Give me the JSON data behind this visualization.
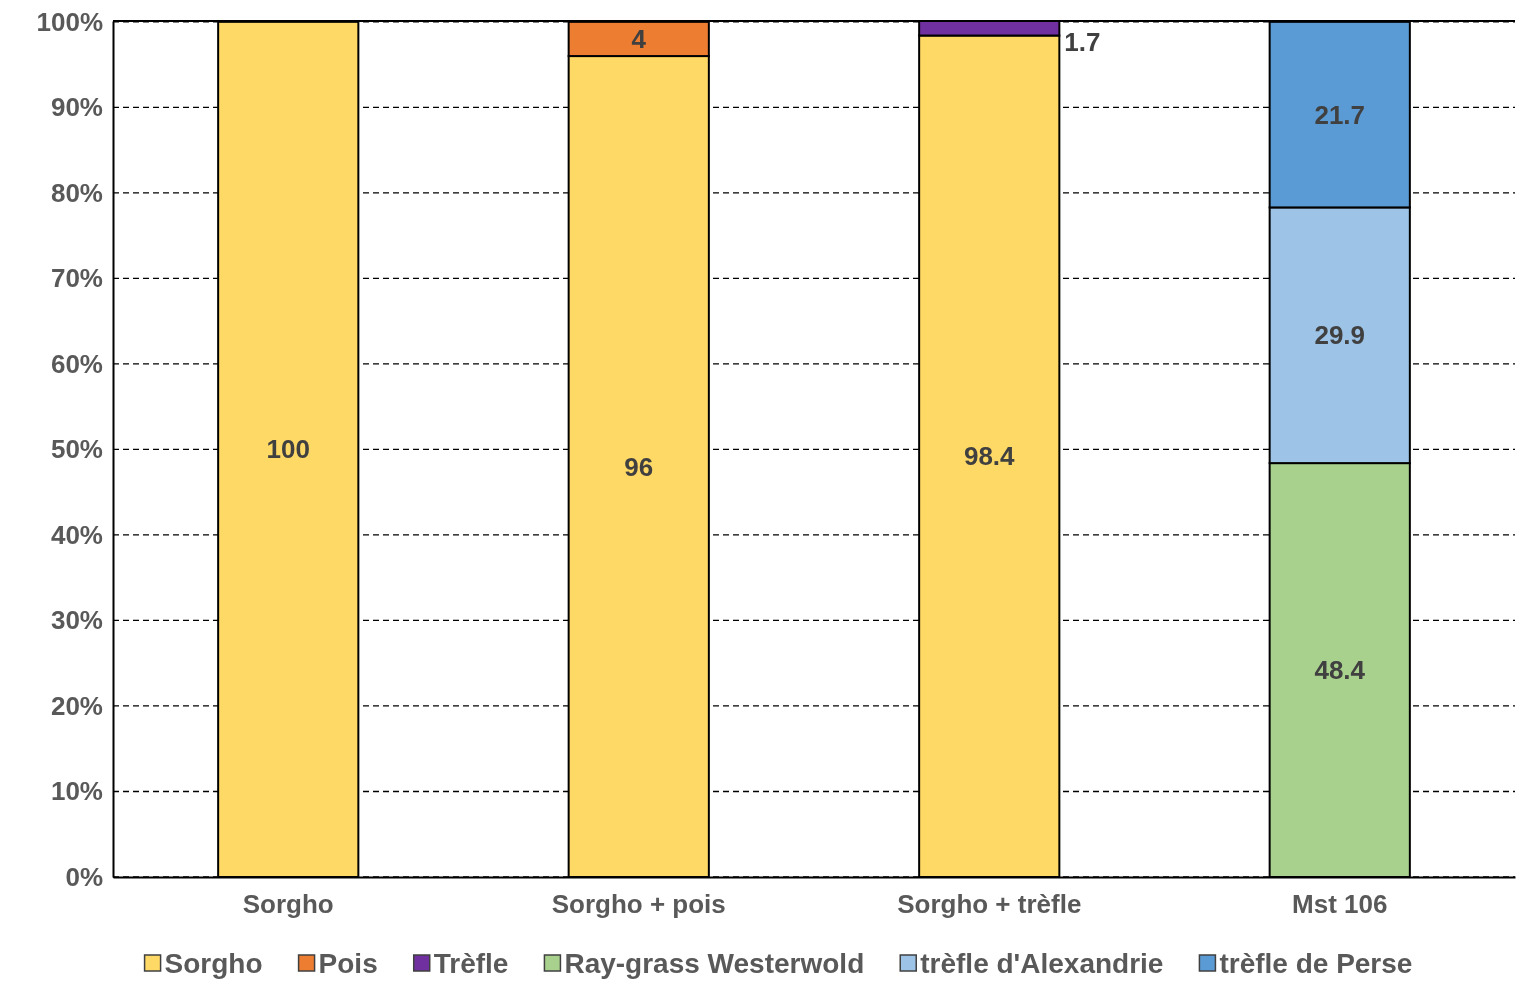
{
  "chart_data": {
    "type": "bar",
    "stacked": true,
    "categories": [
      "Sorgho",
      "Sorgho + pois",
      "Sorgho + trèfle",
      "Mst 106"
    ],
    "series": [
      {
        "name": "Sorgho",
        "color": "#ffd966",
        "values": [
          100,
          96,
          98.4,
          null
        ]
      },
      {
        "name": "Pois",
        "color": "#ed7d31",
        "values": [
          null,
          4,
          null,
          null
        ]
      },
      {
        "name": "Trèfle",
        "color": "#7030a0",
        "values": [
          null,
          null,
          1.7,
          null
        ]
      },
      {
        "name": "Ray-grass Westerwold",
        "color": "#a9d18e",
        "values": [
          null,
          null,
          null,
          48.4
        ]
      },
      {
        "name": "trèfle d'Alexandrie",
        "color": "#9dc3e6",
        "values": [
          null,
          null,
          null,
          29.9
        ]
      },
      {
        "name": "trèfle de Perse",
        "color": "#5b9bd5",
        "values": [
          null,
          null,
          null,
          21.7
        ]
      }
    ],
    "ylim": [
      0,
      100.1
    ],
    "yticks": [
      {
        "value": 0,
        "label": "0%"
      },
      {
        "value": 10,
        "label": "10%"
      },
      {
        "value": 20,
        "label": "20%"
      },
      {
        "value": 30,
        "label": "30%"
      },
      {
        "value": 40,
        "label": "40%"
      },
      {
        "value": 50,
        "label": "50%"
      },
      {
        "value": 60,
        "label": "60%"
      },
      {
        "value": 70,
        "label": "70%"
      },
      {
        "value": 80,
        "label": "80%"
      },
      {
        "value": 90,
        "label": "90%"
      },
      {
        "value": 100,
        "label": "100%"
      }
    ],
    "grid": "y",
    "line_style": "dashed",
    "data_labels": true,
    "legend": "bottom"
  }
}
